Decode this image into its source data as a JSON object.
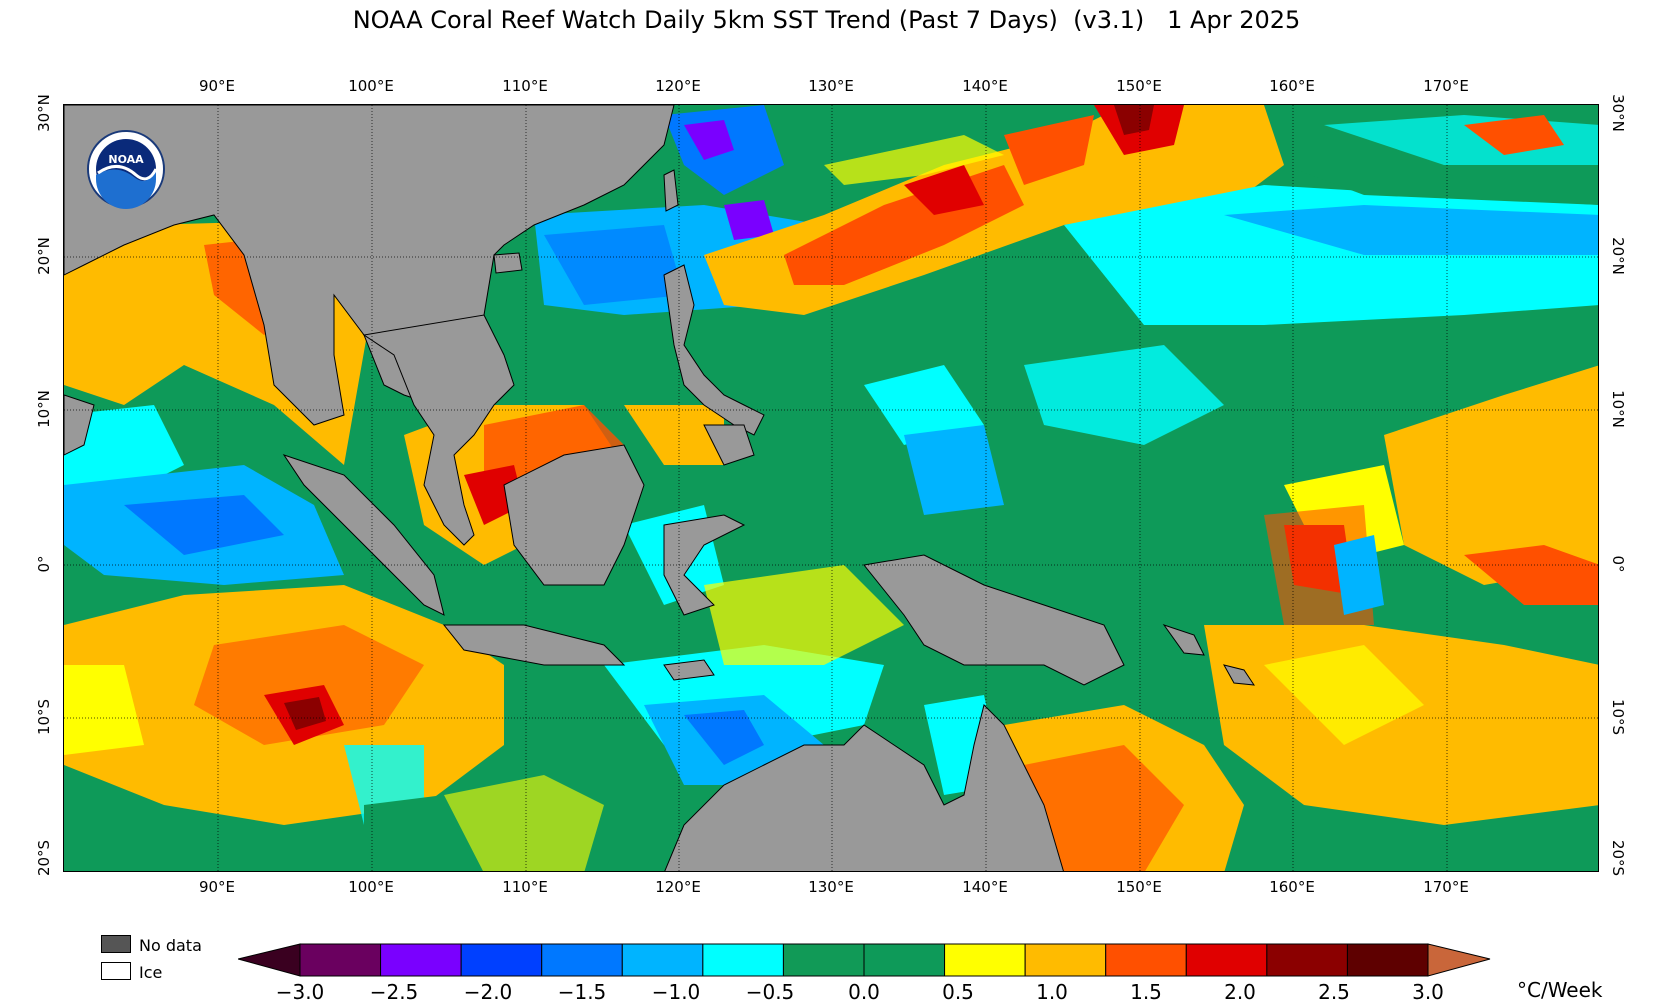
{
  "title": "NOAA Coral Reef Watch Daily 5km SST Trend (Past 7 Days)  (v3.1)   1 Apr 2025",
  "logo": {
    "text": "NOAA",
    "name": "noaa-logo-icon"
  },
  "map": {
    "lon_labels": [
      "90°E",
      "100°E",
      "110°E",
      "120°E",
      "130°E",
      "140°E",
      "150°E",
      "160°E",
      "170°E"
    ],
    "lat_labels": [
      "30°N",
      "20°N",
      "10°N",
      "0°",
      "10°S",
      "20°S"
    ],
    "land_color": "#999999",
    "grid_style": "dotted"
  },
  "legend": {
    "no_data_label": "No data",
    "no_data_color": "#555555",
    "ice_label": "Ice",
    "ice_color": "#ffffff"
  },
  "colorbar": {
    "unit": "°C/Week",
    "tick_labels": [
      "−3.0",
      "−2.5",
      "−2.0",
      "−1.5",
      "−1.0",
      "−0.5",
      "0.0",
      "0.5",
      "1.0",
      "1.5",
      "2.0",
      "2.5",
      "3.0"
    ],
    "colors": [
      "#6a005f",
      "#7a00ff",
      "#0040ff",
      "#0078ff",
      "#00b4ff",
      "#00ffff",
      "#119a57",
      "#0e9a59",
      "#ffff00",
      "#ffbb00",
      "#ff5000",
      "#e00000",
      "#8b0000",
      "#5e0000"
    ],
    "under_color": "#3a0020",
    "over_color": "#c9663a"
  }
}
